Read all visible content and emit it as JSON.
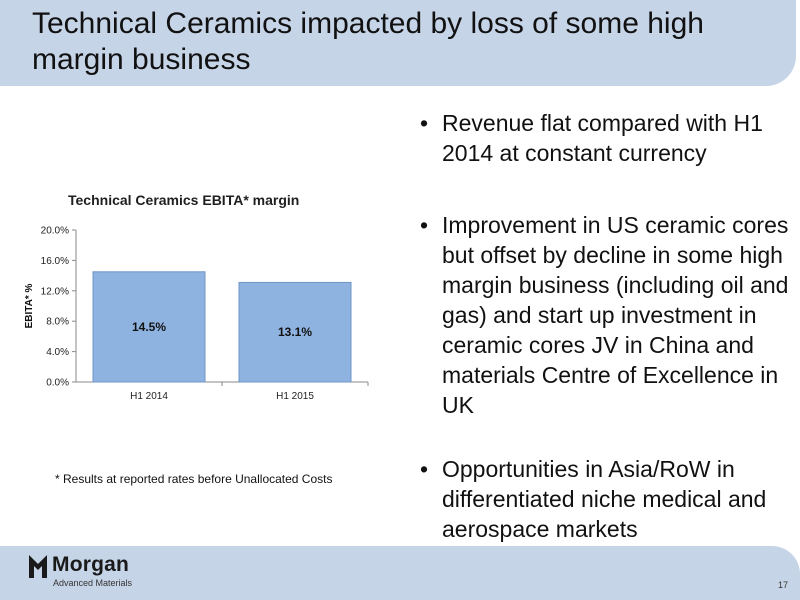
{
  "slide": {
    "title": "Technical Ceramics impacted by loss of some high margin business",
    "bullets": [
      "Revenue flat compared with H1 2014 at constant currency",
      "Improvement in US ceramic cores but offset by decline in some high margin business (including oil and gas) and start up investment in ceramic cores JV in China and materials Centre of Excellence in UK",
      "Opportunities in Asia/RoW in differentiated niche medical and aerospace markets"
    ],
    "footnote": "* Results at reported rates before Unallocated Costs",
    "page_number": "17"
  },
  "footer": {
    "logo_name": "Morgan",
    "logo_sub": "Advanced Materials"
  },
  "colors": {
    "band": "#c6d4e8",
    "bar": "#8fb3e0",
    "bar_stroke": "#6f95c7"
  },
  "chart_data": {
    "type": "bar",
    "title": "Technical Ceramics EBITA* margin",
    "ylabel": "EBITA* %",
    "xlabel": "",
    "categories": [
      "H1 2014",
      "H1 2015"
    ],
    "values": [
      14.5,
      13.1
    ],
    "data_labels": [
      "14.5%",
      "13.1%"
    ],
    "yticks": [
      "0.0%",
      "4.0%",
      "8.0%",
      "12.0%",
      "16.0%",
      "20.0%"
    ],
    "ytick_values": [
      0,
      4,
      8,
      12,
      16,
      20
    ],
    "ylim": [
      0,
      20
    ],
    "grid": false,
    "legend": "none"
  }
}
